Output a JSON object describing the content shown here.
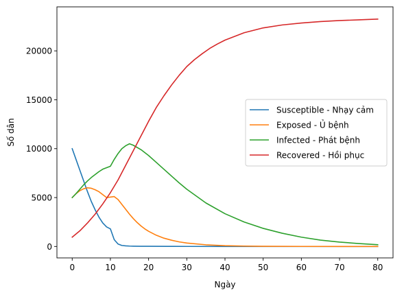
{
  "chart_data": {
    "type": "line",
    "title": "",
    "xlabel": "Ngày",
    "ylabel": "Số dân",
    "xlim": [
      -4,
      84
    ],
    "ylim": [
      -1170,
      24500
    ],
    "xticks": [
      0,
      10,
      20,
      30,
      40,
      50,
      60,
      70,
      80
    ],
    "yticks": [
      0,
      5000,
      10000,
      15000,
      20000
    ],
    "grid": false,
    "legend_position": "center-right",
    "series": [
      {
        "name": "Susceptible - Nhạy cảm",
        "color": "#1f77b4",
        "x": [
          0,
          1,
          2,
          3,
          4,
          5,
          6,
          7,
          8,
          9,
          10,
          11,
          12,
          13,
          14,
          15,
          16,
          18,
          20,
          25,
          30,
          40,
          50,
          60,
          70,
          80
        ],
        "y": [
          10000,
          8900,
          7800,
          6700,
          5600,
          4600,
          3750,
          3000,
          2400,
          2000,
          1800,
          700,
          250,
          100,
          60,
          40,
          30,
          20,
          15,
          10,
          5,
          3,
          2,
          1,
          1,
          1
        ]
      },
      {
        "name": "Exposed - Ủ bệnh",
        "color": "#ff7f0e",
        "x": [
          0,
          1,
          2,
          3,
          4,
          5,
          6,
          7,
          8,
          9,
          10,
          11,
          12,
          13,
          14,
          15,
          16,
          17,
          18,
          19,
          20,
          22,
          24,
          26,
          28,
          30,
          35,
          40,
          45,
          50,
          60,
          70,
          80
        ],
        "y": [
          5000,
          5400,
          5700,
          5900,
          6000,
          5950,
          5800,
          5600,
          5300,
          5000,
          5050,
          5100,
          4800,
          4300,
          3800,
          3300,
          2850,
          2450,
          2100,
          1800,
          1550,
          1150,
          850,
          640,
          470,
          350,
          170,
          80,
          40,
          20,
          5,
          2,
          1
        ]
      },
      {
        "name": "Infected - Phát bệnh",
        "color": "#2ca02c",
        "x": [
          0,
          1,
          2,
          3,
          4,
          5,
          6,
          7,
          8,
          9,
          10,
          11,
          12,
          13,
          14,
          15,
          16,
          18,
          20,
          22,
          24,
          26,
          28,
          30,
          35,
          40,
          45,
          50,
          55,
          60,
          65,
          70,
          75,
          80
        ],
        "y": [
          5000,
          5400,
          5850,
          6300,
          6700,
          7050,
          7350,
          7650,
          7900,
          8050,
          8200,
          8900,
          9500,
          10000,
          10300,
          10500,
          10350,
          9900,
          9300,
          8600,
          7900,
          7200,
          6500,
          5850,
          4450,
          3350,
          2500,
          1850,
          1350,
          950,
          650,
          450,
          300,
          180
        ]
      },
      {
        "name": "Recovered - Hồi phục",
        "color": "#d62728",
        "x": [
          0,
          2,
          4,
          6,
          8,
          10,
          12,
          14,
          16,
          18,
          20,
          22,
          24,
          26,
          28,
          30,
          32,
          34,
          36,
          38,
          40,
          45,
          50,
          55,
          60,
          65,
          70,
          75,
          80
        ],
        "y": [
          950,
          1600,
          2400,
          3300,
          4350,
          5500,
          6800,
          8300,
          9800,
          11300,
          12800,
          14200,
          15400,
          16500,
          17500,
          18400,
          19100,
          19700,
          20250,
          20700,
          21100,
          21850,
          22350,
          22650,
          22850,
          23000,
          23100,
          23170,
          23250
        ]
      }
    ]
  }
}
